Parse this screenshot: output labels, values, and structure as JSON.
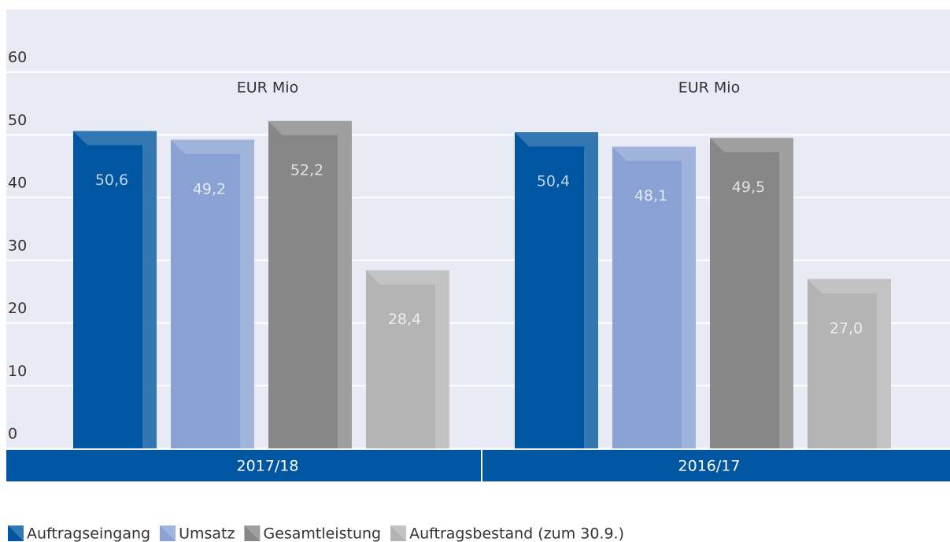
{
  "chart_data": {
    "type": "bar",
    "categories": [
      "2017/18",
      "2016/17"
    ],
    "annotations": [
      "EUR Mio",
      "EUR Mio"
    ],
    "series": [
      {
        "name": "Auftragseingang",
        "color": "#0056a0",
        "values": [
          50.6,
          50.4
        ],
        "value_labels": [
          "50,6",
          "50,4"
        ]
      },
      {
        "name": "Umsatz",
        "color": "#8aa2d3",
        "values": [
          49.2,
          48.1
        ],
        "value_labels": [
          "49,2",
          "48,1"
        ]
      },
      {
        "name": "Gesamtleistung",
        "color": "#878787",
        "values": [
          52.2,
          49.5
        ],
        "value_labels": [
          "52,2",
          "49,5"
        ]
      },
      {
        "name": "Auftragsbestand (zum 30.9.)",
        "color": "#b4b4b4",
        "values": [
          28.4,
          27.0
        ],
        "value_labels": [
          "28,4",
          "27,0"
        ]
      }
    ],
    "ylim": [
      0,
      70
    ],
    "yticks": [
      0,
      10,
      20,
      30,
      40,
      50,
      60
    ],
    "grid": true
  }
}
